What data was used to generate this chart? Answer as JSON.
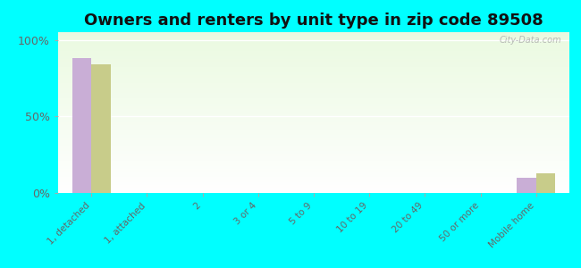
{
  "title": "Owners and renters by unit type in zip code 89508",
  "categories": [
    "1, detached",
    "1, attached",
    "2",
    "3 or 4",
    "5 to 9",
    "10 to 19",
    "20 to 49",
    "50 or more",
    "Mobile home"
  ],
  "owner_values": [
    88,
    0,
    0,
    0,
    0,
    0,
    0,
    0,
    10
  ],
  "renter_values": [
    84,
    0,
    0,
    0,
    0,
    0,
    0,
    0,
    13
  ],
  "owner_color": "#c9aed6",
  "renter_color": "#c8cc8a",
  "bg_color": "#00ffff",
  "yticks": [
    0,
    50,
    100
  ],
  "ytick_labels": [
    "0%",
    "50%",
    "100%"
  ],
  "ylabel_fontsize": 9,
  "title_fontsize": 13,
  "bar_width": 0.35,
  "watermark": "City-Data.com"
}
